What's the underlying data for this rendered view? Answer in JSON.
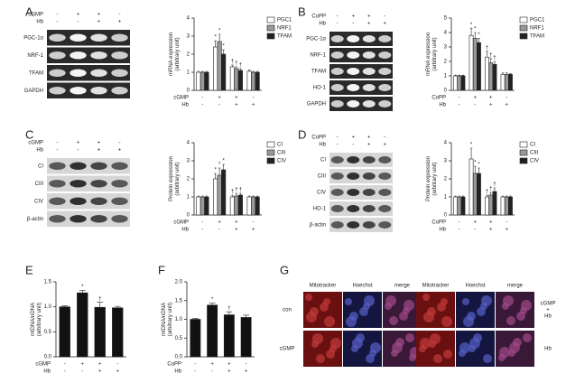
{
  "panel_labels": [
    "A",
    "B",
    "C",
    "D",
    "E",
    "F",
    "G"
  ],
  "blots": [
    {
      "conditions": [
        {
          "name": "cGMP",
          "values": [
            "-",
            "+",
            "+",
            "-"
          ]
        },
        {
          "name": "Hb",
          "values": [
            "-",
            "-",
            "+",
            "+"
          ]
        }
      ],
      "rows": [
        "PGC-1α",
        "NRF-1",
        "TFAM",
        "GAPDH"
      ]
    },
    {
      "conditions": [
        {
          "name": "CoPP",
          "values": [
            "-",
            "+",
            "+",
            "-"
          ]
        },
        {
          "name": "Hb",
          "values": [
            "-",
            "-",
            "+",
            "+"
          ]
        }
      ],
      "rows": [
        "PGC-1α",
        "NRF-1",
        "TFAM",
        "HO-1",
        "GAPDH"
      ]
    },
    {
      "conditions": [
        {
          "name": "cGMP",
          "values": [
            "-",
            "+",
            "+",
            "-"
          ]
        },
        {
          "name": "Hb",
          "values": [
            "-",
            "-",
            "+",
            "+"
          ]
        }
      ],
      "rows": [
        "CI",
        "CIII",
        "CIV",
        "β-actin"
      ]
    },
    {
      "conditions": [
        {
          "name": "CoPP",
          "values": [
            "-",
            "+",
            "+",
            "-"
          ]
        },
        {
          "name": "Hb",
          "values": [
            "-",
            "-",
            "+",
            "+"
          ]
        }
      ],
      "rows": [
        "CI",
        "CIII",
        "CIV",
        "HO-1",
        "β-actin"
      ]
    }
  ],
  "chart_data": [
    {
      "type": "bar",
      "ylabel": [
        "mRNA expression",
        "(arbitrary unit)"
      ],
      "ylim": [
        0,
        4
      ],
      "yticks": [
        0,
        1,
        2,
        3,
        4
      ],
      "conditions": [
        {
          "name": "cGMP",
          "values": [
            "-",
            "+",
            "+",
            "-"
          ]
        },
        {
          "name": "Hb",
          "values": [
            "-",
            "-",
            "+",
            "+"
          ]
        }
      ],
      "series": [
        {
          "name": "PGC1",
          "color": "#ffffff",
          "values": [
            1,
            2.4,
            1.3,
            1.05
          ],
          "errors": [
            0.05,
            0.35,
            0.1,
            0.08
          ],
          "symbols": [
            null,
            "*",
            "†",
            null
          ]
        },
        {
          "name": "NRF1",
          "color": "#999999",
          "values": [
            1,
            2.7,
            1.2,
            1.0
          ],
          "errors": [
            0.05,
            0.4,
            0.1,
            0.05
          ],
          "symbols": [
            null,
            "*",
            "†",
            null
          ]
        },
        {
          "name": "TFAM",
          "color": "#222222",
          "values": [
            1,
            2.0,
            1.1,
            1.0
          ],
          "errors": [
            0.05,
            0.25,
            0.1,
            0.05
          ],
          "symbols": [
            null,
            "*",
            "†",
            null
          ]
        }
      ]
    },
    {
      "type": "bar",
      "ylabel": [
        "mRNA expression",
        "(arbitrary unit)"
      ],
      "ylim": [
        0,
        5
      ],
      "yticks": [
        0,
        1,
        2,
        3,
        4,
        5
      ],
      "conditions": [
        {
          "name": "CoPP",
          "values": [
            "-",
            "+",
            "+",
            "-"
          ]
        },
        {
          "name": "Hb",
          "values": [
            "-",
            "-",
            "+",
            "+"
          ]
        }
      ],
      "series": [
        {
          "name": "PGC1",
          "color": "#ffffff",
          "values": [
            1,
            3.8,
            2.3,
            1.1
          ],
          "errors": [
            0.05,
            0.5,
            0.4,
            0.1
          ],
          "symbols": [
            null,
            "*",
            "†",
            null
          ]
        },
        {
          "name": "NRF1",
          "color": "#999999",
          "values": [
            1,
            3.6,
            1.9,
            1.1
          ],
          "errors": [
            0.05,
            0.4,
            0.3,
            0.1
          ],
          "symbols": [
            null,
            "*",
            "†",
            null
          ]
        },
        {
          "name": "TFAM",
          "color": "#222222",
          "values": [
            1,
            3.3,
            1.8,
            1.1
          ],
          "errors": [
            0.05,
            0.3,
            0.2,
            0.05
          ],
          "symbols": [
            null,
            "*",
            "†",
            null
          ]
        }
      ]
    },
    {
      "type": "bar",
      "ylabel": [
        "Protein expression",
        "(arbitrary unit)"
      ],
      "ylim": [
        0,
        4
      ],
      "yticks": [
        0,
        1,
        2,
        3,
        4
      ],
      "conditions": [
        {
          "name": "cGMP",
          "values": [
            "-",
            "+",
            "+",
            "-"
          ]
        },
        {
          "name": "Hb",
          "values": [
            "-",
            "-",
            "+",
            "+"
          ]
        }
      ],
      "series": [
        {
          "name": "CI",
          "color": "#ffffff",
          "values": [
            1,
            2.0,
            1.0,
            1.0
          ],
          "errors": [
            0.05,
            0.3,
            0.1,
            0.05
          ],
          "symbols": [
            null,
            "*",
            "†",
            null
          ]
        },
        {
          "name": "CIII",
          "color": "#999999",
          "values": [
            1,
            2.2,
            1.05,
            1.0
          ],
          "errors": [
            0.05,
            0.4,
            0.15,
            0.05
          ],
          "symbols": [
            null,
            "*",
            "†",
            null
          ]
        },
        {
          "name": "CIV",
          "color": "#222222",
          "values": [
            1,
            2.5,
            1.1,
            1.0
          ],
          "errors": [
            0.05,
            0.3,
            0.1,
            0.05
          ],
          "symbols": [
            null,
            "*",
            "†",
            null
          ]
        }
      ]
    },
    {
      "type": "bar",
      "ylabel": [
        "Protein expression",
        "(arbitrary unit)"
      ],
      "ylim": [
        0,
        4
      ],
      "yticks": [
        0,
        1,
        2,
        3,
        4
      ],
      "conditions": [
        {
          "name": "CoPP",
          "values": [
            "-",
            "+",
            "+",
            "-"
          ]
        },
        {
          "name": "Hb",
          "values": [
            "-",
            "-",
            "+",
            "+"
          ]
        }
      ],
      "series": [
        {
          "name": "CI",
          "color": "#ffffff",
          "values": [
            1,
            3.1,
            1.0,
            1.0
          ],
          "errors": [
            0.05,
            0.6,
            0.1,
            0.05
          ],
          "symbols": [
            null,
            "*",
            "†",
            null
          ]
        },
        {
          "name": "CIII",
          "color": "#999999",
          "values": [
            1,
            2.3,
            1.1,
            1.0
          ],
          "errors": [
            0.05,
            0.4,
            0.15,
            0.05
          ],
          "symbols": [
            null,
            "*",
            "†",
            null
          ]
        },
        {
          "name": "CIV",
          "color": "#222222",
          "values": [
            1,
            2.3,
            1.3,
            1.0
          ],
          "errors": [
            0.05,
            0.3,
            0.2,
            0.05
          ],
          "symbols": [
            null,
            "*",
            "†",
            null
          ]
        }
      ]
    },
    {
      "type": "bar",
      "ylabel": [
        "mtDNA/nDNA",
        "(arbitrary unit)"
      ],
      "ylim": [
        0,
        1.5
      ],
      "yticks": [
        {
          "value": 0,
          "label": "0.0"
        },
        0.5,
        {
          "value": 1,
          "label": "1.0"
        },
        1.5
      ],
      "conditions": [
        {
          "name": "cGMP",
          "values": [
            "-",
            "+",
            "+",
            "-"
          ]
        },
        {
          "name": "Hb",
          "values": [
            "-",
            "-",
            "+",
            "+"
          ]
        }
      ],
      "series": [
        {
          "color": "#111111",
          "values": [
            1.0,
            1.28,
            0.99,
            0.98
          ],
          "errors": [
            0.02,
            0.05,
            0.1,
            0.03
          ],
          "symbols": [
            null,
            "*",
            "†",
            null
          ]
        }
      ]
    },
    {
      "type": "bar",
      "ylabel": [
        "mtDNA/nDNA",
        "(arbitrary unit)"
      ],
      "ylim": [
        0,
        2
      ],
      "yticks": [
        {
          "value": 0,
          "label": "0.0"
        },
        0.5,
        {
          "value": 1,
          "label": "1.0"
        },
        1.5,
        {
          "value": 2,
          "label": "2.0"
        }
      ],
      "conditions": [
        {
          "name": "CoPP",
          "values": [
            "-",
            "+",
            "+",
            "-"
          ]
        },
        {
          "name": "Hb",
          "values": [
            "-",
            "-",
            "+",
            "+"
          ]
        }
      ],
      "series": [
        {
          "color": "#111111",
          "values": [
            1.0,
            1.38,
            1.12,
            1.05
          ],
          "errors": [
            0.02,
            0.05,
            0.08,
            0.06
          ],
          "symbols": [
            null,
            "*",
            "†",
            null
          ]
        }
      ]
    }
  ],
  "microscopy": {
    "groups": [
      {
        "columns": [
          "Mitotracker",
          "Hoechst",
          "merge"
        ]
      },
      {
        "columns": [
          "Mitotracker",
          "Hoechst",
          "merge"
        ]
      }
    ],
    "rows": [
      "con",
      "cGMP"
    ],
    "right_labels": [
      [
        "cGMP",
        "+",
        "Hb"
      ],
      [
        "Hb"
      ]
    ]
  }
}
